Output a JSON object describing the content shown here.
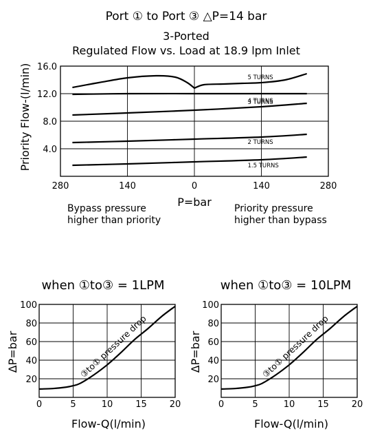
{
  "header": {
    "title": "Port ① to Port ③ △P=14 bar",
    "subtitle_line1": "3-Ported",
    "subtitle_line2": "Regulated Flow vs. Load at 18.9 lpm Inlet"
  },
  "chart_data": [
    {
      "type": "line",
      "ylabel": "Priority Flow-(l/min)",
      "xlabel": "P=bar",
      "y_ticks": [
        "16.0",
        "12.0",
        "8.0",
        "4.0"
      ],
      "x_ticks": [
        "280",
        "140",
        "0",
        "140",
        "280"
      ],
      "ylim": [
        0,
        16
      ],
      "xlim": [
        -280,
        280
      ],
      "grid": true,
      "annotations": {
        "left": [
          "Bypass pressure",
          "higher than priority"
        ],
        "right": [
          "Priority pressure",
          "higher than bypass"
        ]
      },
      "series": [
        {
          "name": "5 TURNS",
          "x": [
            -255,
            -200,
            -140,
            -80,
            -40,
            -15,
            0,
            20,
            60,
            100,
            140,
            190,
            235
          ],
          "y": [
            12.9,
            13.6,
            14.3,
            14.6,
            14.4,
            13.6,
            12.8,
            13.3,
            13.4,
            13.5,
            13.6,
            14.0,
            14.9
          ]
        },
        {
          "name": "4 TURNS",
          "x": [
            -255,
            -140,
            0,
            140,
            235
          ],
          "y": [
            11.9,
            12.0,
            12.0,
            12.0,
            12.0
          ]
        },
        {
          "name": "3 TURNS",
          "x": [
            -255,
            -140,
            0,
            140,
            235
          ],
          "y": [
            8.9,
            9.2,
            9.6,
            10.1,
            10.6
          ]
        },
        {
          "name": "2 TURNS",
          "x": [
            -255,
            -140,
            0,
            140,
            235
          ],
          "y": [
            4.9,
            5.1,
            5.4,
            5.7,
            6.1
          ]
        },
        {
          "name": "1.5 TURNS",
          "x": [
            -255,
            -140,
            0,
            140,
            235
          ],
          "y": [
            1.6,
            1.8,
            2.1,
            2.4,
            2.8
          ]
        }
      ]
    },
    {
      "type": "line",
      "title": "when ①to③ = 1LPM",
      "xlabel": "Flow-Q(l/min)",
      "ylabel": "ΔP=bar",
      "x_ticks": [
        "0",
        "5",
        "10",
        "15",
        "20"
      ],
      "y_ticks": [
        "100",
        "80",
        "60",
        "40",
        "20"
      ],
      "xlim": [
        0,
        20
      ],
      "ylim": [
        0,
        100
      ],
      "grid": true,
      "curve_label": "③to① pressure drop",
      "series": [
        {
          "x": [
            0,
            2,
            4,
            5,
            6,
            8,
            10,
            12,
            14,
            16,
            18,
            20
          ],
          "y": [
            9,
            9.5,
            11,
            12.5,
            15,
            24,
            35,
            48,
            62,
            74,
            87,
            98
          ]
        }
      ]
    },
    {
      "type": "line",
      "title": "when ①to③ = 10LPM",
      "xlabel": "Flow-Q(l/min)",
      "ylabel": "ΔP=bar",
      "x_ticks": [
        "0",
        "5",
        "10",
        "15",
        "20"
      ],
      "y_ticks": [
        "100",
        "80",
        "60",
        "40",
        "20"
      ],
      "xlim": [
        0,
        20
      ],
      "ylim": [
        0,
        100
      ],
      "grid": true,
      "curve_label": "③to① pressure drop",
      "series": [
        {
          "x": [
            0,
            2,
            4,
            5,
            6,
            8,
            10,
            12,
            14,
            16,
            18,
            20
          ],
          "y": [
            9,
            9.5,
            11,
            12.5,
            15,
            24,
            35,
            48,
            62,
            74,
            87,
            98
          ]
        }
      ]
    }
  ]
}
